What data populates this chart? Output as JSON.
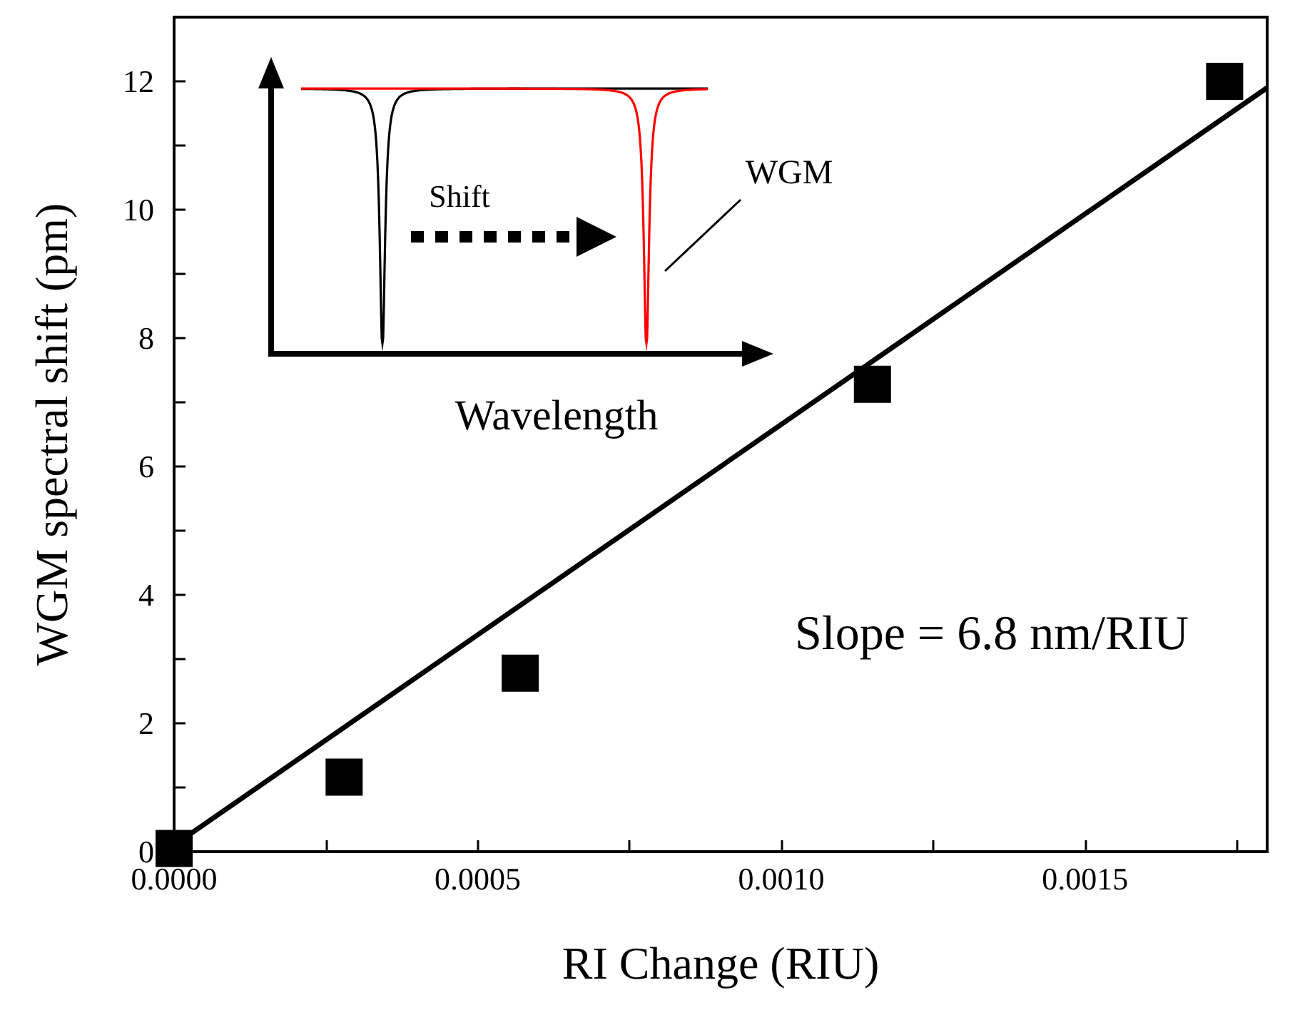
{
  "chart_data": {
    "type": "scatter",
    "xlabel": "RI Change (RIU)",
    "ylabel": "WGM spectral shift (pm)",
    "annotations": [
      "Shift",
      "WGM",
      "Wavelength",
      "Slope = 6.8 nm/RIU"
    ],
    "x": [
      0,
      0.00028,
      0.00057,
      0.00115,
      0.00173
    ],
    "series": [
      {
        "color": "#000000",
        "marker": "square",
        "values": [
          0.05,
          1.16,
          2.78,
          7.28,
          12.0
        ]
      },
      {
        "type": "line",
        "color": "#000000",
        "marker": "none",
        "line_style": "solid",
        "x": [
          0,
          0.0018
        ],
        "values": [
          0.1,
          11.9
        ]
      }
    ],
    "xlim": [
      0,
      0.0018
    ],
    "xticks": [
      {
        "value": 0,
        "label": "0.0000"
      },
      {
        "value": 0.00025,
        "label": null
      },
      {
        "value": 0.0005,
        "label": "0.0005"
      },
      {
        "value": 0.00075,
        "label": null
      },
      {
        "value": 0.001,
        "label": "0.0010"
      },
      {
        "value": 0.00125,
        "label": null
      },
      {
        "value": 0.0015,
        "label": "0.0015"
      },
      {
        "value": 0.00175,
        "label": null
      }
    ],
    "ylim": [
      0,
      13
    ],
    "yticks": [
      0,
      {
        "value": 1,
        "label": null
      },
      2,
      {
        "value": 3,
        "label": null
      },
      4,
      {
        "value": 5,
        "label": null
      },
      6,
      {
        "value": 7,
        "label": null
      },
      8,
      {
        "value": 9,
        "label": null
      },
      10,
      {
        "value": 11,
        "label": null
      },
      12
    ],
    "grid": false
  }
}
